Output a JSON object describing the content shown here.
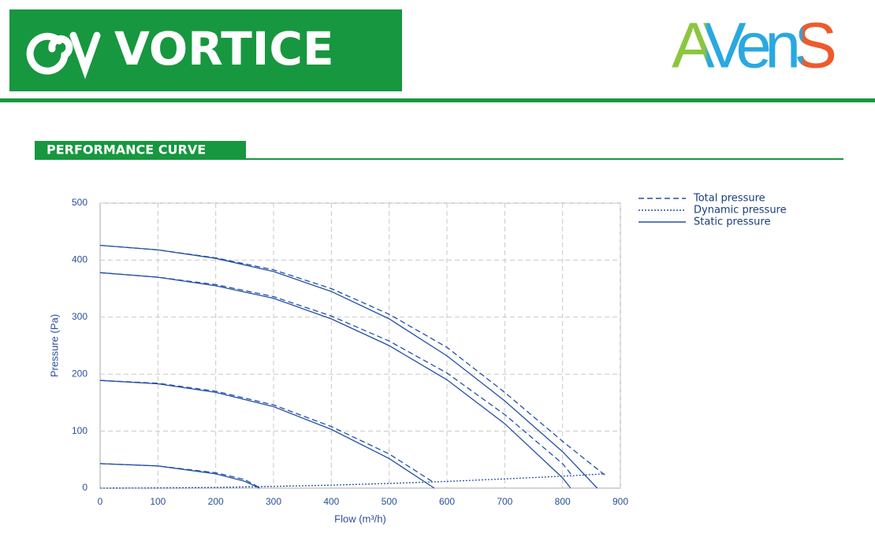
{
  "header": {
    "brand": "VORTICE",
    "partner": "AVenS"
  },
  "section_title": "PERFORMANCE CURVE",
  "chart_data": {
    "type": "line",
    "x_label": "Flow (m³/h)",
    "y_label": "Pressure (Pa)",
    "xlim": [
      0,
      900
    ],
    "xticks": [
      0,
      100,
      200,
      300,
      400,
      500,
      600,
      700,
      800,
      900
    ],
    "ylim": [
      0,
      500
    ],
    "yticks": [
      0,
      100,
      200,
      300,
      400,
      500
    ],
    "grid": true,
    "legend": "top-right",
    "series": [
      {
        "name": "Total pressure",
        "color": "#2350a6",
        "style": "dashed",
        "curves": [
          {
            "x": [
              0,
              100,
              200,
              300,
              400,
              500,
              600,
              700,
              800,
              873
            ],
            "values": [
              426,
              418,
              404,
              383,
              350,
              305,
              247,
              168,
              82,
              23
            ]
          },
          {
            "x": [
              0,
              100,
              200,
              300,
              400,
              500,
              600,
              700,
              800,
              818
            ],
            "values": [
              378,
              370,
              357,
              336,
              302,
              258,
              202,
              129,
              43,
              20
            ]
          },
          {
            "x": [
              0,
              100,
              200,
              300,
              400,
              500,
              574
            ],
            "values": [
              189,
              184,
              170,
              146,
              108,
              60,
              12
            ]
          },
          {
            "x": [
              0,
              100,
              200,
              250,
              272
            ],
            "values": [
              43,
              39,
              27,
              15,
              3
            ]
          }
        ]
      },
      {
        "name": "Dynamic pressure",
        "color": "#2350a6",
        "style": "dotted",
        "curves": [
          {
            "x": [
              0,
              100,
              200,
              300,
              400,
              500,
              600,
              700,
              800,
              873
            ],
            "values": [
              0,
              0.3,
              1.3,
              3,
              5.3,
              8.2,
              11.8,
              16.1,
              21,
              25
            ]
          }
        ]
      },
      {
        "name": "Static pressure",
        "color": "#2350a6",
        "style": "solid",
        "curves": [
          {
            "x": [
              0,
              100,
              200,
              300,
              400,
              500,
              600,
              700,
              800,
              860
            ],
            "values": [
              426,
              418,
              403,
              380,
              345,
              297,
              232,
              153,
              64,
              0
            ]
          },
          {
            "x": [
              0,
              100,
              200,
              300,
              400,
              500,
              600,
              700,
              800,
              814
            ],
            "values": [
              378,
              370,
              355,
              333,
              297,
              250,
              190,
              113,
              18,
              0
            ]
          },
          {
            "x": [
              0,
              100,
              200,
              300,
              400,
              500,
              578
            ],
            "values": [
              189,
              183,
              168,
              143,
              103,
              52,
              0
            ]
          },
          {
            "x": [
              0,
              100,
              200,
              250,
              276
            ],
            "values": [
              43,
              39,
              25,
              12,
              0
            ]
          }
        ]
      }
    ]
  }
}
